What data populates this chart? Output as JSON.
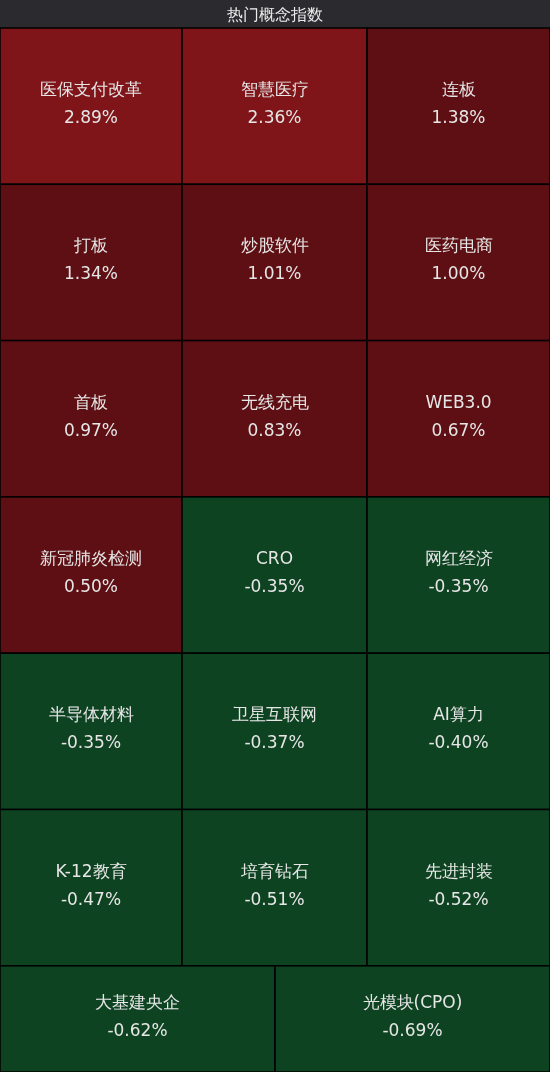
{
  "chart_data": {
    "type": "other",
    "title": "热门概念指数",
    "categories": [
      "医保支付改革",
      "智慧医疗",
      "连板",
      "打板",
      "炒股软件",
      "医药电商",
      "首板",
      "无线充电",
      "WEB3.0",
      "新冠肺炎检测",
      "CRO",
      "网红经济",
      "半导体材料",
      "卫星互联网",
      "AI算力",
      "K-12教育",
      "培育钻石",
      "先进封装",
      "大基建央企",
      "光模块(CPO)"
    ],
    "values": [
      2.89,
      2.36,
      1.38,
      1.34,
      1.01,
      1.0,
      0.97,
      0.83,
      0.67,
      0.5,
      -0.35,
      -0.35,
      -0.35,
      -0.37,
      -0.4,
      -0.47,
      -0.51,
      -0.52,
      -0.62,
      -0.69
    ],
    "value_labels": [
      "2.89%",
      "2.36%",
      "1.38%",
      "1.34%",
      "1.01%",
      "1.00%",
      "0.97%",
      "0.83%",
      "0.67%",
      "0.50%",
      "-0.35%",
      "-0.35%",
      "-0.35%",
      "-0.37%",
      "-0.40%",
      "-0.47%",
      "-0.51%",
      "-0.52%",
      "-0.62%",
      "-0.69%"
    ],
    "colors": [
      "#7f1519",
      "#7f1519",
      "#5e0f13",
      "#5e0f13",
      "#5e0f13",
      "#5e0f13",
      "#5e0f13",
      "#5e0f13",
      "#5e0f13",
      "#5e0f13",
      "#0e4322",
      "#0e4322",
      "#0e4322",
      "#0e4322",
      "#0e4322",
      "#0e4322",
      "#0e4322",
      "#0e4322",
      "#0e4322",
      "#0e4322"
    ]
  }
}
